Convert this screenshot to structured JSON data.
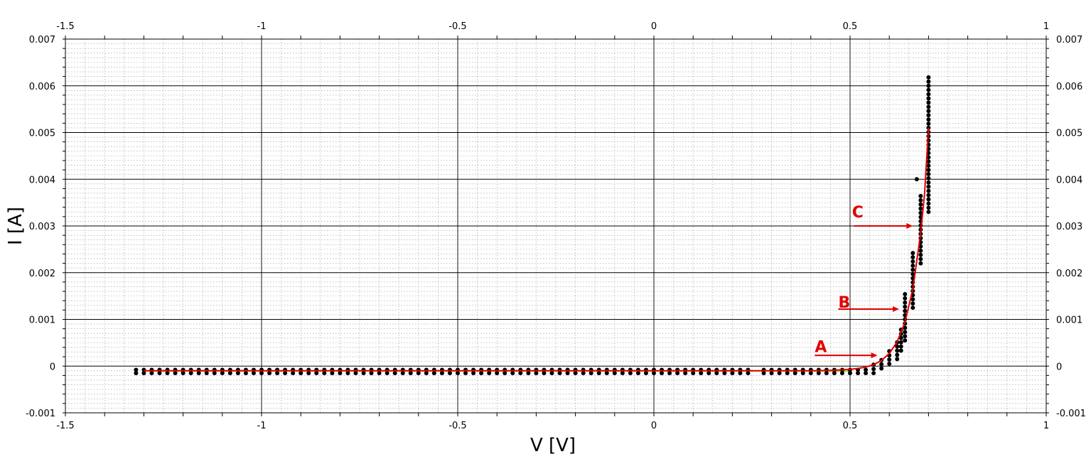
{
  "chart_data": {
    "type": "scatter",
    "title": "",
    "xlabel": "V [V]",
    "ylabel": "I [A]",
    "xlim": [
      -1.5,
      1
    ],
    "ylim": [
      -0.001,
      0.007
    ],
    "x_major_ticks": [
      -1.5,
      -1,
      -0.5,
      0,
      0.5,
      1
    ],
    "x_tick_labels": [
      "-1.5",
      "-1",
      "-0.5",
      "0",
      "0.5",
      "1"
    ],
    "y_major_ticks": [
      -0.001,
      0,
      0.001,
      0.002,
      0.003,
      0.004,
      0.005,
      0.006,
      0.007
    ],
    "y_tick_labels": [
      "-0.001",
      "0",
      "0.001",
      "0.002",
      "0.003",
      "0.004",
      "0.005",
      "0.006",
      "0.007"
    ],
    "x_minor_step": 0.05,
    "y_minor_step": 0.0001,
    "grid": true,
    "colors": {
      "points": "#000000",
      "fit": "#e00000",
      "annotation": "#e00000",
      "flat_line": "#7fd000"
    },
    "series": [
      {
        "kind": "points",
        "description_cols": [
          "V",
          "I_low",
          "I_high"
        ],
        "columns": [
          [
            -1.32,
            -0.00015,
            -8e-05
          ],
          [
            -1.3,
            -0.00015,
            -8e-05
          ],
          [
            -1.28,
            -0.00015,
            -8e-05
          ],
          [
            -1.26,
            -0.00015,
            -8e-05
          ],
          [
            -1.24,
            -0.00015,
            -8e-05
          ],
          [
            -1.22,
            -0.00015,
            -8e-05
          ],
          [
            -1.2,
            -0.00015,
            -8e-05
          ],
          [
            -1.18,
            -0.00015,
            -8e-05
          ],
          [
            -1.16,
            -0.00015,
            -8e-05
          ],
          [
            -1.14,
            -0.00015,
            -8e-05
          ],
          [
            -1.12,
            -0.00015,
            -8e-05
          ],
          [
            -1.1,
            -0.00015,
            -8e-05
          ],
          [
            -1.08,
            -0.00015,
            -8e-05
          ],
          [
            -1.06,
            -0.00015,
            -8e-05
          ],
          [
            -1.04,
            -0.00015,
            -8e-05
          ],
          [
            -1.02,
            -0.00015,
            -8e-05
          ],
          [
            -1.0,
            -0.00015,
            -8e-05
          ],
          [
            -0.98,
            -0.00015,
            -8e-05
          ],
          [
            -0.96,
            -0.00015,
            -8e-05
          ],
          [
            -0.94,
            -0.00015,
            -8e-05
          ],
          [
            -0.92,
            -0.00015,
            -8e-05
          ],
          [
            -0.9,
            -0.00015,
            -8e-05
          ],
          [
            -0.88,
            -0.00015,
            -8e-05
          ],
          [
            -0.86,
            -0.00015,
            -8e-05
          ],
          [
            -0.84,
            -0.00015,
            -8e-05
          ],
          [
            -0.82,
            -0.00015,
            -8e-05
          ],
          [
            -0.8,
            -0.00015,
            -8e-05
          ],
          [
            -0.78,
            -0.00015,
            -8e-05
          ],
          [
            -0.76,
            -0.00015,
            -8e-05
          ],
          [
            -0.74,
            -0.00015,
            -8e-05
          ],
          [
            -0.72,
            -0.00015,
            -8e-05
          ],
          [
            -0.7,
            -0.00015,
            -8e-05
          ],
          [
            -0.68,
            -0.00015,
            -8e-05
          ],
          [
            -0.66,
            -0.00015,
            -8e-05
          ],
          [
            -0.64,
            -0.00015,
            -8e-05
          ],
          [
            -0.62,
            -0.00015,
            -8e-05
          ],
          [
            -0.6,
            -0.00015,
            -8e-05
          ],
          [
            -0.58,
            -0.00015,
            -8e-05
          ],
          [
            -0.56,
            -0.00015,
            -8e-05
          ],
          [
            -0.54,
            -0.00015,
            -8e-05
          ],
          [
            -0.52,
            -0.00015,
            -8e-05
          ],
          [
            -0.5,
            -0.00015,
            -8e-05
          ],
          [
            -0.48,
            -0.00015,
            -8e-05
          ],
          [
            -0.46,
            -0.00015,
            -8e-05
          ],
          [
            -0.44,
            -0.00015,
            -8e-05
          ],
          [
            -0.42,
            -0.00015,
            -8e-05
          ],
          [
            -0.4,
            -0.00015,
            -8e-05
          ],
          [
            -0.38,
            -0.00015,
            -8e-05
          ],
          [
            -0.36,
            -0.00015,
            -8e-05
          ],
          [
            -0.34,
            -0.00015,
            -8e-05
          ],
          [
            -0.32,
            -0.00015,
            -8e-05
          ],
          [
            -0.3,
            -0.00015,
            -8e-05
          ],
          [
            -0.28,
            -0.00015,
            -8e-05
          ],
          [
            -0.26,
            -0.00015,
            -8e-05
          ],
          [
            -0.24,
            -0.00015,
            -8e-05
          ],
          [
            -0.22,
            -0.00015,
            -8e-05
          ],
          [
            -0.2,
            -0.00015,
            -8e-05
          ],
          [
            -0.18,
            -0.00015,
            -8e-05
          ],
          [
            -0.16,
            -0.00015,
            -8e-05
          ],
          [
            -0.14,
            -0.00015,
            -8e-05
          ],
          [
            -0.12,
            -0.00015,
            -8e-05
          ],
          [
            -0.1,
            -0.00015,
            -8e-05
          ],
          [
            -0.08,
            -0.00015,
            -8e-05
          ],
          [
            -0.06,
            -0.00015,
            -8e-05
          ],
          [
            -0.04,
            -0.00015,
            -8e-05
          ],
          [
            -0.02,
            -0.00015,
            -8e-05
          ],
          [
            0.0,
            -0.00015,
            -8e-05
          ],
          [
            0.02,
            -0.00015,
            -8e-05
          ],
          [
            0.04,
            -0.00015,
            -8e-05
          ],
          [
            0.06,
            -0.00015,
            -8e-05
          ],
          [
            0.08,
            -0.00015,
            -8e-05
          ],
          [
            0.1,
            -0.00015,
            -8e-05
          ],
          [
            0.12,
            -0.00015,
            -8e-05
          ],
          [
            0.14,
            -0.00015,
            -8e-05
          ],
          [
            0.16,
            -0.00015,
            -8e-05
          ],
          [
            0.18,
            -0.00015,
            -8e-05
          ],
          [
            0.2,
            -0.00015,
            -8e-05
          ],
          [
            0.22,
            -0.00015,
            -8e-05
          ],
          [
            0.24,
            -0.00015,
            -8e-05
          ],
          [
            0.28,
            -0.00015,
            -8e-05
          ],
          [
            0.3,
            -0.00015,
            -8e-05
          ],
          [
            0.32,
            -0.00015,
            -8e-05
          ],
          [
            0.34,
            -0.00015,
            -8e-05
          ],
          [
            0.36,
            -0.00015,
            -8e-05
          ],
          [
            0.38,
            -0.00015,
            -8e-05
          ],
          [
            0.4,
            -0.00015,
            -8e-05
          ],
          [
            0.42,
            -0.00015,
            -8e-05
          ],
          [
            0.44,
            -0.00015,
            -8e-05
          ],
          [
            0.46,
            -0.00015,
            -8e-05
          ],
          [
            0.48,
            -0.00015,
            -8e-05
          ],
          [
            0.5,
            -0.00015,
            -8e-05
          ],
          [
            0.52,
            -0.00015,
            -8e-05
          ],
          [
            0.54,
            -0.00015,
            -8e-05
          ],
          [
            0.56,
            -0.00015,
            3e-05
          ],
          [
            0.58,
            -5e-05,
            0.00015
          ],
          [
            0.6,
            5e-05,
            0.00035
          ],
          [
            0.62,
            0.00015,
            0.00055
          ],
          [
            0.63,
            0.00033,
            0.0008
          ],
          [
            0.64,
            0.00055,
            0.00155
          ],
          [
            0.66,
            0.00125,
            0.0025
          ],
          [
            0.68,
            0.0022,
            0.0037
          ],
          [
            0.7,
            0.0033,
            0.00625
          ]
        ]
      },
      {
        "kind": "fit_curve",
        "x": [
          -1.3,
          -1.0,
          -0.5,
          0.0,
          0.3,
          0.4,
          0.45,
          0.5,
          0.52,
          0.54,
          0.56,
          0.58,
          0.6,
          0.62,
          0.64,
          0.66,
          0.68,
          0.69,
          0.7
        ],
        "y": [
          -0.0001,
          -0.0001,
          -0.0001,
          -0.0001,
          -0.0001,
          -0.0001,
          -9e-05,
          -7e-05,
          -5e-05,
          -2e-05,
          3e-05,
          0.00012,
          0.00027,
          0.00052,
          0.00094,
          0.00165,
          0.00285,
          0.0037,
          0.0051
        ]
      }
    ],
    "isolated_points": [
      [
        0.67,
        0.004
      ]
    ],
    "annotations": [
      {
        "label": "A",
        "arrow_from": [
          0.41,
          0.00023
        ],
        "arrow_to": [
          0.57,
          0.00023
        ],
        "text_at": [
          0.41,
          0.0003
        ]
      },
      {
        "label": "B",
        "arrow_from": [
          0.47,
          0.00122
        ],
        "arrow_to": [
          0.625,
          0.00122
        ],
        "text_at": [
          0.47,
          0.00125
        ]
      },
      {
        "label": "C",
        "arrow_from": [
          0.51,
          0.003
        ],
        "arrow_to": [
          0.66,
          0.003
        ],
        "text_at": [
          0.505,
          0.00318
        ]
      }
    ]
  }
}
